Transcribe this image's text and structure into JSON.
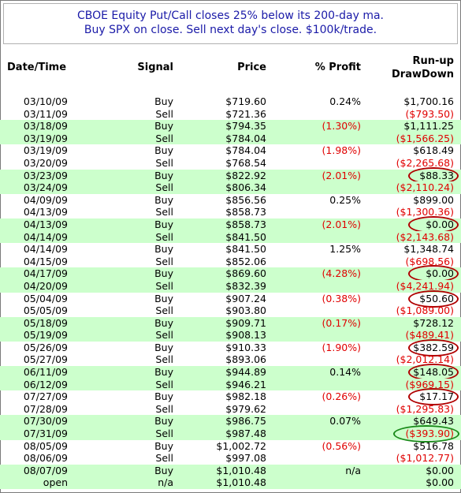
{
  "title": {
    "line1": "CBOE Equity Put/Call closes 25% below its 200-day ma.",
    "line2": "Buy SPX on close.  Sell next day's close.  $100k/trade."
  },
  "headers": {
    "date": "Date/Time",
    "signal": "Signal",
    "price": "Price",
    "profit": "% Profit",
    "runup": "Run-up",
    "drawdown": "DrawDown"
  },
  "colors": {
    "title_text": "#1a1aa8",
    "alt_row": "#ccffcc",
    "negative": "#e00000",
    "circle_red": "#b00000",
    "circle_green": "#1a8a1a"
  },
  "rows": [
    {
      "date": "03/10/09",
      "signal": "Buy",
      "price": "$719.60",
      "profit": "0.24%",
      "runup": "$1,700.16",
      "alt": false,
      "profit_neg": false,
      "run_neg": false,
      "circle": ""
    },
    {
      "date": "03/11/09",
      "signal": "Sell",
      "price": "$721.36",
      "profit": "",
      "runup": "($793.50)",
      "alt": false,
      "profit_neg": false,
      "run_neg": true,
      "circle": ""
    },
    {
      "date": "03/18/09",
      "signal": "Buy",
      "price": "$794.35",
      "profit": "(1.30%)",
      "runup": "$1,111.25",
      "alt": true,
      "profit_neg": true,
      "run_neg": false,
      "circle": ""
    },
    {
      "date": "03/19/09",
      "signal": "Sell",
      "price": "$784.04",
      "profit": "",
      "runup": "($1,566.25)",
      "alt": true,
      "profit_neg": false,
      "run_neg": true,
      "circle": ""
    },
    {
      "date": "03/19/09",
      "signal": "Buy",
      "price": "$784.04",
      "profit": "(1.98%)",
      "runup": "$618.49",
      "alt": false,
      "profit_neg": true,
      "run_neg": false,
      "circle": ""
    },
    {
      "date": "03/20/09",
      "signal": "Sell",
      "price": "$768.54",
      "profit": "",
      "runup": "($2,265.68)",
      "alt": false,
      "profit_neg": false,
      "run_neg": true,
      "circle": ""
    },
    {
      "date": "03/23/09",
      "signal": "Buy",
      "price": "$822.92",
      "profit": "(2.01%)",
      "runup": "$88.33",
      "alt": true,
      "profit_neg": true,
      "run_neg": false,
      "circle": "red"
    },
    {
      "date": "03/24/09",
      "signal": "Sell",
      "price": "$806.34",
      "profit": "",
      "runup": "($2,110.24)",
      "alt": true,
      "profit_neg": false,
      "run_neg": true,
      "circle": ""
    },
    {
      "date": "04/09/09",
      "signal": "Buy",
      "price": "$856.56",
      "profit": "0.25%",
      "runup": "$899.00",
      "alt": false,
      "profit_neg": false,
      "run_neg": false,
      "circle": ""
    },
    {
      "date": "04/13/09",
      "signal": "Sell",
      "price": "$858.73",
      "profit": "",
      "runup": "($1,300.36)",
      "alt": false,
      "profit_neg": false,
      "run_neg": true,
      "circle": ""
    },
    {
      "date": "04/13/09",
      "signal": "Buy",
      "price": "$858.73",
      "profit": "(2.01%)",
      "runup": "$0.00",
      "alt": true,
      "profit_neg": true,
      "run_neg": false,
      "circle": "red"
    },
    {
      "date": "04/14/09",
      "signal": "Sell",
      "price": "$841.50",
      "profit": "",
      "runup": "($2,143.68)",
      "alt": true,
      "profit_neg": false,
      "run_neg": true,
      "circle": ""
    },
    {
      "date": "04/14/09",
      "signal": "Buy",
      "price": "$841.50",
      "profit": "1.25%",
      "runup": "$1,348.74",
      "alt": false,
      "profit_neg": false,
      "run_neg": false,
      "circle": ""
    },
    {
      "date": "04/15/09",
      "signal": "Sell",
      "price": "$852.06",
      "profit": "",
      "runup": "($698.56)",
      "alt": false,
      "profit_neg": false,
      "run_neg": true,
      "circle": ""
    },
    {
      "date": "04/17/09",
      "signal": "Buy",
      "price": "$869.60",
      "profit": "(4.28%)",
      "runup": "$0.00",
      "alt": true,
      "profit_neg": true,
      "run_neg": false,
      "circle": "red"
    },
    {
      "date": "04/20/09",
      "signal": "Sell",
      "price": "$832.39",
      "profit": "",
      "runup": "($4,241.94)",
      "alt": true,
      "profit_neg": false,
      "run_neg": true,
      "circle": ""
    },
    {
      "date": "05/04/09",
      "signal": "Buy",
      "price": "$907.24",
      "profit": "(0.38%)",
      "runup": "$50.60",
      "alt": false,
      "profit_neg": true,
      "run_neg": false,
      "circle": "red"
    },
    {
      "date": "05/05/09",
      "signal": "Sell",
      "price": "$903.80",
      "profit": "",
      "runup": "($1,089.00)",
      "alt": false,
      "profit_neg": false,
      "run_neg": true,
      "circle": ""
    },
    {
      "date": "05/18/09",
      "signal": "Buy",
      "price": "$909.71",
      "profit": "(0.17%)",
      "runup": "$728.12",
      "alt": true,
      "profit_neg": true,
      "run_neg": false,
      "circle": ""
    },
    {
      "date": "05/19/09",
      "signal": "Sell",
      "price": "$908.13",
      "profit": "",
      "runup": "($489.41)",
      "alt": true,
      "profit_neg": false,
      "run_neg": true,
      "circle": ""
    },
    {
      "date": "05/26/09",
      "signal": "Buy",
      "price": "$910.33",
      "profit": "(1.90%)",
      "runup": "$382.59",
      "alt": false,
      "profit_neg": true,
      "run_neg": false,
      "circle": "red"
    },
    {
      "date": "05/27/09",
      "signal": "Sell",
      "price": "$893.06",
      "profit": "",
      "runup": "($2,012.14)",
      "alt": false,
      "profit_neg": false,
      "run_neg": true,
      "circle": ""
    },
    {
      "date": "06/11/09",
      "signal": "Buy",
      "price": "$944.89",
      "profit": "0.14%",
      "runup": "$148.05",
      "alt": true,
      "profit_neg": false,
      "run_neg": false,
      "circle": "red"
    },
    {
      "date": "06/12/09",
      "signal": "Sell",
      "price": "$946.21",
      "profit": "",
      "runup": "($969.15)",
      "alt": true,
      "profit_neg": false,
      "run_neg": true,
      "circle": ""
    },
    {
      "date": "07/27/09",
      "signal": "Buy",
      "price": "$982.18",
      "profit": "(0.26%)",
      "runup": "$17.17",
      "alt": false,
      "profit_neg": true,
      "run_neg": false,
      "circle": "red"
    },
    {
      "date": "07/28/09",
      "signal": "Sell",
      "price": "$979.62",
      "profit": "",
      "runup": "($1,295.83)",
      "alt": false,
      "profit_neg": false,
      "run_neg": true,
      "circle": ""
    },
    {
      "date": "07/30/09",
      "signal": "Buy",
      "price": "$986.75",
      "profit": "0.07%",
      "runup": "$649.43",
      "alt": true,
      "profit_neg": false,
      "run_neg": false,
      "circle": ""
    },
    {
      "date": "07/31/09",
      "signal": "Sell",
      "price": "$987.48",
      "profit": "",
      "runup": "($393.90)",
      "alt": true,
      "profit_neg": false,
      "run_neg": true,
      "circle": "green"
    },
    {
      "date": "08/05/09",
      "signal": "Buy",
      "price": "$1,002.72",
      "profit": "(0.56%)",
      "runup": "$516.78",
      "alt": false,
      "profit_neg": true,
      "run_neg": false,
      "circle": ""
    },
    {
      "date": "08/06/09",
      "signal": "Sell",
      "price": "$997.08",
      "profit": "",
      "runup": "($1,012.77)",
      "alt": false,
      "profit_neg": false,
      "run_neg": true,
      "circle": ""
    },
    {
      "date": "08/07/09",
      "signal": "Buy",
      "price": "$1,010.48",
      "profit": "n/a",
      "runup": "$0.00",
      "alt": true,
      "profit_neg": false,
      "run_neg": false,
      "circle": ""
    },
    {
      "date": "open",
      "signal": "n/a",
      "price": "$1,010.48",
      "profit": "",
      "runup": "$0.00",
      "alt": true,
      "profit_neg": false,
      "run_neg": false,
      "circle": ""
    }
  ]
}
